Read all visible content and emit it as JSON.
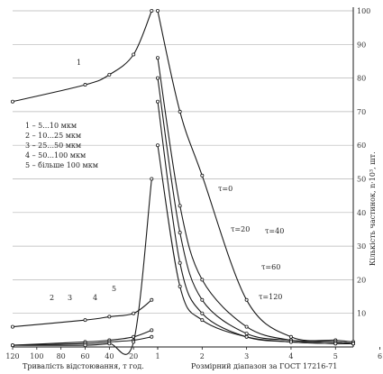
{
  "chart_data": {
    "type": "line",
    "title": "",
    "y_axis": {
      "label": "Кількість частинок, n·10³, шт.",
      "ticks": [
        10,
        20,
        30,
        40,
        50,
        60,
        70,
        80,
        90,
        100
      ],
      "range": [
        0,
        100
      ]
    },
    "x_axis_left": {
      "label": "Тривалість відстоювання, т год.",
      "ticks": [
        120,
        100,
        80,
        60,
        40,
        20,
        1
      ],
      "range": [
        120,
        0
      ]
    },
    "x_axis_right": {
      "label": "Розмірний діапазон за ГОСТ 17216-71",
      "ticks": [
        1,
        2,
        3,
        4,
        5,
        6
      ],
      "range": [
        0.7,
        5.4
      ]
    },
    "legend": [
      "1 – 5...10 мкм",
      "2 – 10...25 мкм",
      "3 – 25...50 мкм",
      "4 – 50...100 мкм",
      "5 – більше 100 мкм"
    ],
    "left_series": [
      {
        "name": "1",
        "x": [
          120,
          60,
          40,
          20,
          5
        ],
        "y": [
          73,
          78,
          81,
          87,
          100
        ]
      },
      {
        "name": "2",
        "x": [
          120,
          60,
          40,
          20,
          5
        ],
        "y": [
          6,
          8,
          9,
          10,
          14
        ]
      },
      {
        "name": "3",
        "x": [
          120,
          60,
          40,
          20,
          5
        ],
        "y": [
          0.5,
          1.5,
          2,
          3,
          5
        ]
      },
      {
        "name": "4",
        "x": [
          120,
          60,
          40,
          20,
          5
        ],
        "y": [
          0.5,
          1,
          1.5,
          2,
          3
        ]
      },
      {
        "name": "5",
        "x": [
          120,
          60,
          40,
          20,
          5
        ],
        "y": [
          0.5,
          0.5,
          1,
          1.5,
          50
        ]
      }
    ],
    "right_series": [
      {
        "name": "τ=0",
        "x": [
          1.0,
          1.5,
          2.0,
          3.0,
          4.0,
          5.0,
          5.4
        ],
        "y": [
          100,
          70,
          51,
          14,
          3,
          2,
          1.5
        ]
      },
      {
        "name": "τ=20",
        "x": [
          1.0,
          1.5,
          2.0,
          3.0,
          4.0,
          5.0,
          5.4
        ],
        "y": [
          86,
          42,
          20,
          6,
          2,
          1.5,
          1
        ]
      },
      {
        "name": "τ=40",
        "x": [
          1.0,
          1.5,
          2.0,
          3.0,
          4.0,
          5.0,
          5.4
        ],
        "y": [
          80,
          34,
          14,
          4,
          2,
          1.5,
          1
        ]
      },
      {
        "name": "τ=60",
        "x": [
          1.0,
          1.5,
          2.0,
          3.0,
          4.0,
          5.0,
          5.4
        ],
        "y": [
          73,
          25,
          10,
          3,
          1.5,
          1,
          1
        ]
      },
      {
        "name": "τ=120",
        "x": [
          1.0,
          1.5,
          2.0,
          3.0,
          4.0,
          5.0,
          5.4
        ],
        "y": [
          60,
          18,
          8,
          3,
          1.5,
          1,
          1
        ]
      }
    ],
    "grid": true
  }
}
